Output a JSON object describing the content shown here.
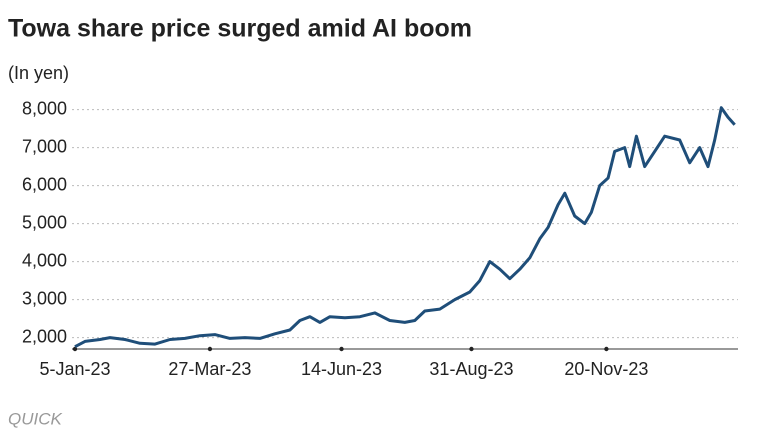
{
  "chart_data": {
    "type": "line",
    "title": "Towa share price surged amid AI boom",
    "y_label": "(In yen)",
    "source": "QUICK",
    "x": [
      "2023-01-05",
      "2023-01-11",
      "2023-01-20",
      "2023-01-26",
      "2023-02-04",
      "2023-02-13",
      "2023-02-22",
      "2023-03-03",
      "2023-03-12",
      "2023-03-21",
      "2023-03-30",
      "2023-04-08",
      "2023-04-17",
      "2023-04-26",
      "2023-05-05",
      "2023-05-14",
      "2023-05-20",
      "2023-05-26",
      "2023-06-01",
      "2023-06-07",
      "2023-06-16",
      "2023-06-25",
      "2023-07-04",
      "2023-07-13",
      "2023-07-22",
      "2023-07-28",
      "2023-08-03",
      "2023-08-12",
      "2023-08-21",
      "2023-08-30",
      "2023-09-05",
      "2023-09-11",
      "2023-09-17",
      "2023-09-23",
      "2023-09-29",
      "2023-10-05",
      "2023-10-11",
      "2023-10-16",
      "2023-10-22",
      "2023-10-26",
      "2023-11-01",
      "2023-11-07",
      "2023-11-11",
      "2023-11-16",
      "2023-11-21",
      "2023-11-25",
      "2023-12-01",
      "2023-12-04",
      "2023-12-08",
      "2023-12-13",
      "2023-12-19",
      "2023-12-25",
      "2024-01-03",
      "2024-01-09",
      "2024-01-15",
      "2024-01-20",
      "2024-01-24",
      "2024-01-28",
      "2024-02-01",
      "2024-02-05"
    ],
    "series": [
      {
        "name": "Towa",
        "color": "#1f4e79",
        "values": [
          1760,
          1900,
          1950,
          2000,
          1950,
          1850,
          1830,
          1950,
          1980,
          2050,
          2080,
          1980,
          2000,
          1980,
          2100,
          2200,
          2450,
          2550,
          2400,
          2550,
          2520,
          2550,
          2650,
          2450,
          2400,
          2450,
          2700,
          2750,
          3000,
          3200,
          3500,
          4000,
          3800,
          3550,
          3800,
          4100,
          4600,
          4900,
          5500,
          5800,
          5200,
          5000,
          5300,
          6000,
          6200,
          6900,
          7000,
          6500,
          7300,
          6500,
          6900,
          7300,
          7200,
          6600,
          7000,
          6500,
          7200,
          8050,
          7800,
          7600
        ]
      }
    ],
    "xlim": [
      "2023-01-05",
      "2024-02-07"
    ],
    "xticks": [
      {
        "value": "2023-01-05",
        "label": "5-Jan-23"
      },
      {
        "value": "2023-03-27",
        "label": "27-Mar-23"
      },
      {
        "value": "2023-06-14",
        "label": "14-Jun-23"
      },
      {
        "value": "2023-08-31",
        "label": "31-Aug-23"
      },
      {
        "value": "2023-11-20",
        "label": "20-Nov-23"
      }
    ],
    "ylim": [
      1700,
      8200
    ],
    "yticks": [
      {
        "value": 2000,
        "label": "2,000"
      },
      {
        "value": 3000,
        "label": "3,000"
      },
      {
        "value": 4000,
        "label": "4,000"
      },
      {
        "value": 5000,
        "label": "5,000"
      },
      {
        "value": 6000,
        "label": "6,000"
      },
      {
        "value": 7000,
        "label": "7,000"
      },
      {
        "value": 8000,
        "label": "8,000"
      }
    ],
    "grid": true
  }
}
